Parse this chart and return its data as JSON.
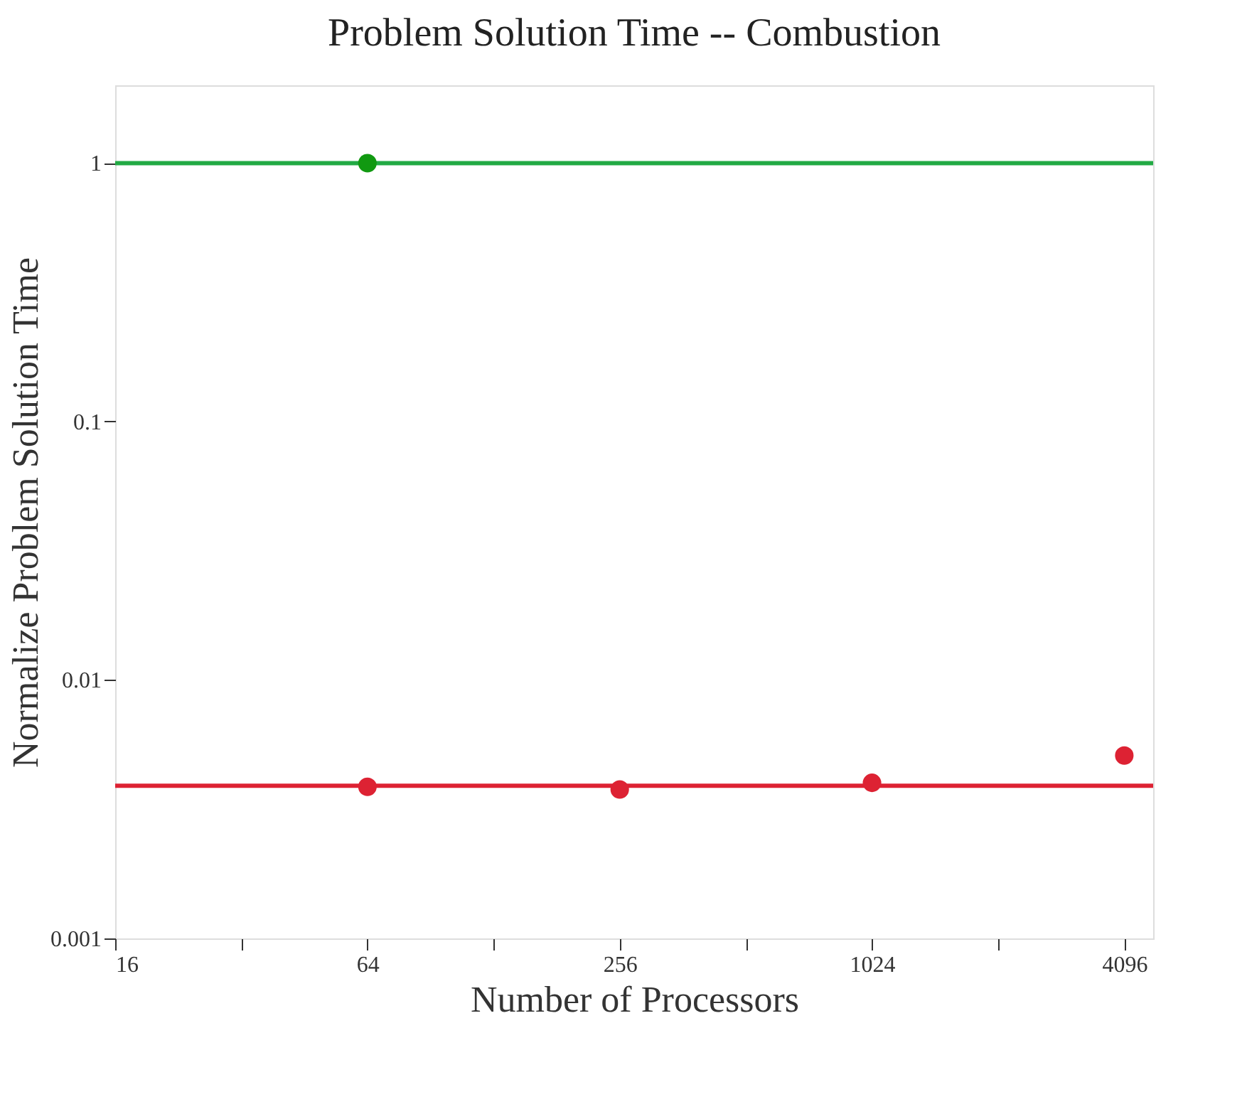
{
  "chart_data": {
    "type": "scatter",
    "title": "Problem Solution Time -- Combustion",
    "xlabel": "Number of Processors",
    "ylabel": "Normalize Problem Solution Time",
    "log": "xy",
    "grid": false,
    "xlim": [
      16,
      4800
    ],
    "ylim": [
      0.001,
      2
    ],
    "xticks": [
      16,
      {
        "value": 32,
        "label": null
      },
      64,
      {
        "value": 128,
        "label": null
      },
      256,
      {
        "value": 512,
        "label": null
      },
      1024,
      {
        "value": 2048,
        "label": null
      },
      4096
    ],
    "yticks": [
      0.001,
      0.01,
      0.1,
      1
    ],
    "series": [
      {
        "type": "line",
        "color": "#22aa44",
        "x": [
          16,
          4800
        ],
        "values": [
          1,
          1
        ],
        "marker": "none"
      },
      {
        "type": "line",
        "color": "#dd2233",
        "x": [
          16,
          4800
        ],
        "values": [
          0.0039,
          0.0039
        ],
        "marker": "none"
      },
      {
        "color": "#119911",
        "x": [
          64
        ],
        "values": [
          1
        ],
        "marker": "circle"
      },
      {
        "color": "#dd2233",
        "x": [
          64,
          256,
          1024,
          4096
        ],
        "values": [
          0.00386,
          0.00377,
          0.004,
          0.0051
        ],
        "marker": "circle"
      }
    ]
  }
}
